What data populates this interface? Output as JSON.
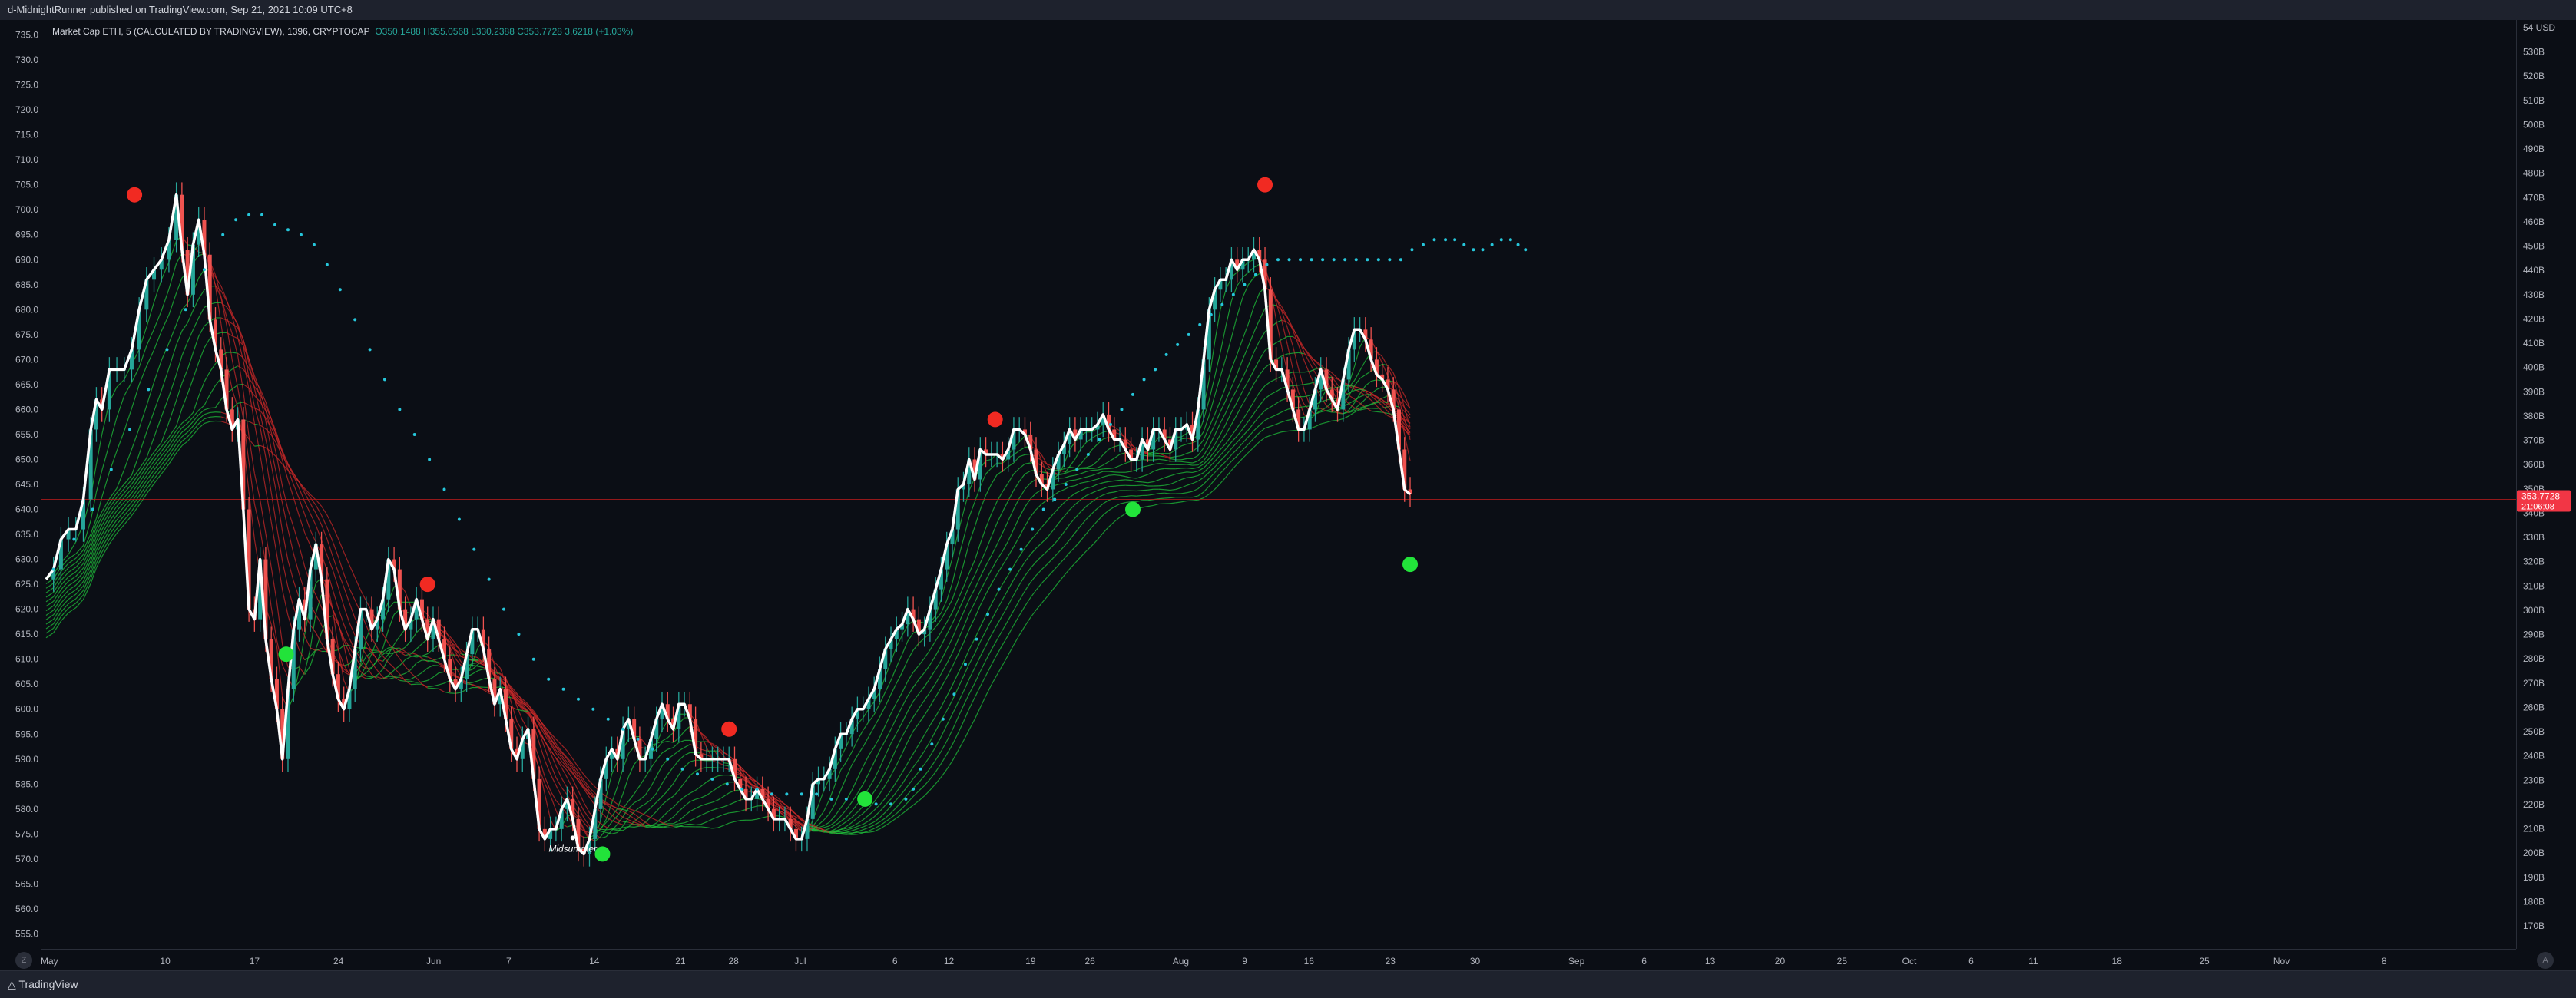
{
  "header": {
    "published": "d-MidnightRunner published on TradingView.com, Sep 21, 2021 10:09 UTC+8"
  },
  "legend": {
    "symbol": "Market Cap ETH, 5 (CALCULATED BY TRADINGVIEW), 1396, CRYPTOCAP",
    "open": "O350.1488",
    "high": "H355.0568",
    "low": "L330.2388",
    "close": "C353.7728",
    "change": "3.6218 (+1.03%)"
  },
  "price_tag": {
    "value": "353.7728",
    "countdown": "21:06:08"
  },
  "annotation": "Midsummer",
  "footer": {
    "brand": "TradingView"
  },
  "corners": {
    "left": "Z",
    "right": "A"
  },
  "colors": {
    "up": "#26a69a",
    "down": "#ef5350",
    "price_line": "#ffffff",
    "ribbon_up": "#1fbf3a",
    "ribbon_down": "#c62828",
    "trend_dots": "#26c6da",
    "buy_dot": "#22e33a",
    "sell_dot": "#f12a22",
    "price_tag": "#f23645"
  },
  "chart_data": {
    "type": "line",
    "title": "Market Cap ETH, 5 (CALCULATED BY TRADINGVIEW), 1396, CRYPTOCAP",
    "x_tick_labels": [
      "May",
      "10",
      "17",
      "24",
      "Jun",
      "7",
      "14",
      "21",
      "28",
      "Jul",
      "6",
      "12",
      "19",
      "26",
      "Aug",
      "9",
      "16",
      "23",
      "30",
      "Sep",
      "6",
      "13",
      "20",
      "25",
      "Oct",
      "6",
      "11",
      "18",
      "25",
      "Nov",
      "8"
    ],
    "x_tick_fractions": [
      0.0032,
      0.05,
      0.0861,
      0.12,
      0.1585,
      0.1888,
      0.2234,
      0.2582,
      0.2797,
      0.3066,
      0.3449,
      0.3667,
      0.3997,
      0.4237,
      0.4604,
      0.4862,
      0.5122,
      0.5451,
      0.5793,
      0.6203,
      0.6476,
      0.6743,
      0.7025,
      0.7276,
      0.7548,
      0.7798,
      0.8049,
      0.8387,
      0.874,
      0.9052,
      0.9467
    ],
    "y_left_ticks": [
      "735.0",
      "730.0",
      "725.0",
      "720.0",
      "715.0",
      "710.0",
      "705.0",
      "700.0",
      "695.0",
      "690.0",
      "685.0",
      "680.0",
      "675.0",
      "670.0",
      "665.0",
      "660.0",
      "655.0",
      "650.0",
      "645.0",
      "640.0",
      "635.0",
      "630.0",
      "625.0",
      "620.0",
      "615.0",
      "610.0",
      "605.0",
      "600.0",
      "595.0",
      "590.0",
      "585.0",
      "580.0",
      "575.0",
      "570.0",
      "565.0",
      "560.0",
      "555.0"
    ],
    "y_left_range": [
      552,
      738
    ],
    "y_right_unit": "USD",
    "y_right_ticks": [
      "54",
      "530B",
      "520B",
      "510B",
      "500B",
      "490B",
      "480B",
      "470B",
      "460B",
      "450B",
      "440B",
      "430B",
      "420B",
      "410B",
      "400B",
      "390B",
      "380B",
      "370B",
      "360B",
      "350B",
      "340B",
      "330B",
      "320B",
      "310B",
      "300B",
      "290B",
      "280B",
      "270B",
      "260B",
      "250B",
      "240B",
      "230B",
      "220B",
      "210B",
      "200B",
      "190B",
      "180B",
      "170B"
    ],
    "current_level": 642,
    "price_series": [
      [
        0,
        626
      ],
      [
        0.004,
        628
      ],
      [
        0.008,
        634
      ],
      [
        0.012,
        636
      ],
      [
        0.016,
        636
      ],
      [
        0.02,
        642
      ],
      [
        0.024,
        656
      ],
      [
        0.027,
        662
      ],
      [
        0.03,
        660
      ],
      [
        0.034,
        668
      ],
      [
        0.038,
        668
      ],
      [
        0.042,
        668
      ],
      [
        0.046,
        672
      ],
      [
        0.05,
        680
      ],
      [
        0.054,
        686
      ],
      [
        0.058,
        688
      ],
      [
        0.062,
        690
      ],
      [
        0.066,
        694
      ],
      [
        0.07,
        703
      ],
      [
        0.073,
        692
      ],
      [
        0.076,
        683
      ],
      [
        0.079,
        693
      ],
      [
        0.082,
        698
      ],
      [
        0.085,
        691
      ],
      [
        0.088,
        678
      ],
      [
        0.091,
        672
      ],
      [
        0.094,
        668
      ],
      [
        0.097,
        660
      ],
      [
        0.1,
        656
      ],
      [
        0.103,
        658
      ],
      [
        0.106,
        640
      ],
      [
        0.109,
        620
      ],
      [
        0.112,
        618
      ],
      [
        0.115,
        630
      ],
      [
        0.118,
        614
      ],
      [
        0.121,
        606
      ],
      [
        0.124,
        600
      ],
      [
        0.127,
        590
      ],
      [
        0.13,
        604
      ],
      [
        0.133,
        616
      ],
      [
        0.136,
        622
      ],
      [
        0.139,
        618
      ],
      [
        0.142,
        628
      ],
      [
        0.145,
        633
      ],
      [
        0.148,
        626
      ],
      [
        0.151,
        614
      ],
      [
        0.154,
        607
      ],
      [
        0.157,
        602
      ],
      [
        0.16,
        600
      ],
      [
        0.163,
        604
      ],
      [
        0.166,
        612
      ],
      [
        0.169,
        620
      ],
      [
        0.172,
        620
      ],
      [
        0.175,
        616
      ],
      [
        0.178,
        618
      ],
      [
        0.181,
        622
      ],
      [
        0.184,
        630
      ],
      [
        0.187,
        628
      ],
      [
        0.19,
        620
      ],
      [
        0.193,
        616
      ],
      [
        0.196,
        618
      ],
      [
        0.199,
        622
      ],
      [
        0.202,
        618
      ],
      [
        0.205,
        614
      ],
      [
        0.208,
        618
      ],
      [
        0.211,
        614
      ],
      [
        0.214,
        610
      ],
      [
        0.217,
        606
      ],
      [
        0.22,
        604
      ],
      [
        0.223,
        606
      ],
      [
        0.226,
        611
      ],
      [
        0.229,
        616
      ],
      [
        0.232,
        616
      ],
      [
        0.235,
        612
      ],
      [
        0.238,
        606
      ],
      [
        0.241,
        601
      ],
      [
        0.244,
        604
      ],
      [
        0.247,
        598
      ],
      [
        0.25,
        592
      ],
      [
        0.253,
        590
      ],
      [
        0.256,
        594
      ],
      [
        0.259,
        596
      ],
      [
        0.262,
        586
      ],
      [
        0.265,
        576
      ],
      [
        0.268,
        574
      ],
      [
        0.271,
        576
      ],
      [
        0.274,
        576
      ],
      [
        0.277,
        580
      ],
      [
        0.28,
        582
      ],
      [
        0.283,
        578
      ],
      [
        0.286,
        572
      ],
      [
        0.289,
        571
      ],
      [
        0.292,
        574
      ],
      [
        0.295,
        580
      ],
      [
        0.298,
        586
      ],
      [
        0.301,
        590
      ],
      [
        0.304,
        592
      ],
      [
        0.307,
        590
      ],
      [
        0.31,
        596
      ],
      [
        0.313,
        598
      ],
      [
        0.316,
        594
      ],
      [
        0.319,
        590
      ],
      [
        0.322,
        590
      ],
      [
        0.325,
        594
      ],
      [
        0.328,
        598
      ],
      [
        0.331,
        601
      ],
      [
        0.334,
        598
      ],
      [
        0.337,
        596
      ],
      [
        0.34,
        601
      ],
      [
        0.343,
        601
      ],
      [
        0.346,
        598
      ],
      [
        0.349,
        591
      ],
      [
        0.352,
        590
      ],
      [
        0.355,
        590
      ],
      [
        0.358,
        590
      ],
      [
        0.361,
        590
      ],
      [
        0.364,
        590
      ],
      [
        0.367,
        590
      ],
      [
        0.37,
        586
      ],
      [
        0.373,
        584
      ],
      [
        0.376,
        582
      ],
      [
        0.379,
        582
      ],
      [
        0.382,
        584
      ],
      [
        0.385,
        582
      ],
      [
        0.388,
        580
      ],
      [
        0.391,
        578
      ],
      [
        0.394,
        578
      ],
      [
        0.397,
        578
      ],
      [
        0.4,
        576
      ],
      [
        0.403,
        574
      ],
      [
        0.406,
        574
      ],
      [
        0.409,
        578
      ],
      [
        0.412,
        585
      ],
      [
        0.415,
        586
      ],
      [
        0.418,
        586
      ],
      [
        0.421,
        588
      ],
      [
        0.424,
        592
      ],
      [
        0.427,
        595
      ],
      [
        0.43,
        595
      ],
      [
        0.433,
        598
      ],
      [
        0.436,
        600
      ],
      [
        0.439,
        600
      ],
      [
        0.442,
        602
      ],
      [
        0.445,
        604
      ],
      [
        0.448,
        608
      ],
      [
        0.451,
        612
      ],
      [
        0.454,
        614
      ],
      [
        0.457,
        616
      ],
      [
        0.46,
        617
      ],
      [
        0.463,
        620
      ],
      [
        0.466,
        618
      ],
      [
        0.469,
        615
      ],
      [
        0.472,
        616
      ],
      [
        0.475,
        620
      ],
      [
        0.478,
        624
      ],
      [
        0.481,
        628
      ],
      [
        0.484,
        633
      ],
      [
        0.487,
        636
      ],
      [
        0.49,
        644
      ],
      [
        0.493,
        645
      ],
      [
        0.496,
        650
      ],
      [
        0.499,
        646
      ],
      [
        0.502,
        652
      ],
      [
        0.505,
        651
      ],
      [
        0.508,
        651
      ],
      [
        0.511,
        651
      ],
      [
        0.514,
        650
      ],
      [
        0.517,
        652
      ],
      [
        0.52,
        656
      ],
      [
        0.523,
        656
      ],
      [
        0.526,
        655
      ],
      [
        0.529,
        652
      ],
      [
        0.532,
        647
      ],
      [
        0.535,
        645
      ],
      [
        0.538,
        644
      ],
      [
        0.541,
        648
      ],
      [
        0.544,
        651
      ],
      [
        0.547,
        653
      ],
      [
        0.55,
        656
      ],
      [
        0.553,
        654
      ],
      [
        0.556,
        656
      ],
      [
        0.559,
        656
      ],
      [
        0.562,
        656
      ],
      [
        0.565,
        657
      ],
      [
        0.568,
        659
      ],
      [
        0.571,
        656
      ],
      [
        0.574,
        654
      ],
      [
        0.577,
        654
      ],
      [
        0.58,
        652
      ],
      [
        0.583,
        650
      ],
      [
        0.586,
        650
      ],
      [
        0.589,
        654
      ],
      [
        0.592,
        652
      ],
      [
        0.595,
        656
      ],
      [
        0.598,
        656
      ],
      [
        0.601,
        654
      ],
      [
        0.604,
        652
      ],
      [
        0.607,
        656
      ],
      [
        0.61,
        656
      ],
      [
        0.613,
        657
      ],
      [
        0.616,
        654
      ],
      [
        0.619,
        660
      ],
      [
        0.622,
        670
      ],
      [
        0.625,
        680
      ],
      [
        0.628,
        684
      ],
      [
        0.631,
        686
      ],
      [
        0.634,
        686
      ],
      [
        0.637,
        690
      ],
      [
        0.64,
        688
      ],
      [
        0.643,
        690
      ],
      [
        0.646,
        690
      ],
      [
        0.649,
        692
      ],
      [
        0.652,
        690
      ],
      [
        0.655,
        684
      ],
      [
        0.658,
        670
      ],
      [
        0.661,
        668
      ],
      [
        0.664,
        668
      ],
      [
        0.667,
        664
      ],
      [
        0.67,
        660
      ],
      [
        0.673,
        656
      ],
      [
        0.676,
        656
      ],
      [
        0.679,
        660
      ],
      [
        0.682,
        664
      ],
      [
        0.685,
        668
      ],
      [
        0.688,
        664
      ],
      [
        0.691,
        662
      ],
      [
        0.694,
        660
      ],
      [
        0.697,
        666
      ],
      [
        0.7,
        672
      ],
      [
        0.703,
        676
      ],
      [
        0.706,
        676
      ],
      [
        0.709,
        674
      ],
      [
        0.712,
        670
      ],
      [
        0.715,
        667
      ],
      [
        0.718,
        666
      ],
      [
        0.721,
        664
      ],
      [
        0.724,
        660
      ],
      [
        0.727,
        652
      ],
      [
        0.73,
        644
      ],
      [
        0.733,
        643
      ]
    ],
    "trend_dots": [
      [
        0.004,
        628
      ],
      [
        0.015,
        634
      ],
      [
        0.025,
        640
      ],
      [
        0.035,
        648
      ],
      [
        0.045,
        656
      ],
      [
        0.055,
        664
      ],
      [
        0.065,
        672
      ],
      [
        0.075,
        680
      ],
      [
        0.085,
        688
      ],
      [
        0.095,
        695
      ],
      [
        0.102,
        698
      ],
      [
        0.109,
        699
      ],
      [
        0.116,
        699
      ],
      [
        0.123,
        697
      ],
      [
        0.13,
        696
      ],
      [
        0.137,
        695
      ],
      [
        0.144,
        693
      ],
      [
        0.151,
        689
      ],
      [
        0.158,
        684
      ],
      [
        0.166,
        678
      ],
      [
        0.174,
        672
      ],
      [
        0.182,
        666
      ],
      [
        0.19,
        660
      ],
      [
        0.198,
        655
      ],
      [
        0.206,
        650
      ],
      [
        0.214,
        644
      ],
      [
        0.222,
        638
      ],
      [
        0.23,
        632
      ],
      [
        0.238,
        626
      ],
      [
        0.246,
        620
      ],
      [
        0.254,
        615
      ],
      [
        0.262,
        610
      ],
      [
        0.27,
        606
      ],
      [
        0.278,
        604
      ],
      [
        0.286,
        602
      ],
      [
        0.294,
        600
      ],
      [
        0.302,
        598
      ],
      [
        0.31,
        596
      ],
      [
        0.318,
        594
      ],
      [
        0.326,
        592
      ],
      [
        0.334,
        590
      ],
      [
        0.342,
        588
      ],
      [
        0.35,
        587
      ],
      [
        0.358,
        586
      ],
      [
        0.366,
        585
      ],
      [
        0.374,
        584
      ],
      [
        0.382,
        584
      ],
      [
        0.39,
        583
      ],
      [
        0.398,
        583
      ],
      [
        0.406,
        583
      ],
      [
        0.414,
        583
      ],
      [
        0.422,
        582
      ],
      [
        0.43,
        582
      ],
      [
        0.438,
        582
      ],
      [
        0.446,
        581
      ],
      [
        0.454,
        581
      ],
      [
        0.462,
        582
      ],
      [
        0.466,
        584
      ],
      [
        0.47,
        588
      ],
      [
        0.476,
        593
      ],
      [
        0.482,
        598
      ],
      [
        0.488,
        603
      ],
      [
        0.494,
        609
      ],
      [
        0.5,
        614
      ],
      [
        0.506,
        619
      ],
      [
        0.512,
        624
      ],
      [
        0.518,
        628
      ],
      [
        0.524,
        632
      ],
      [
        0.53,
        636
      ],
      [
        0.536,
        640
      ],
      [
        0.542,
        642
      ],
      [
        0.548,
        645
      ],
      [
        0.554,
        648
      ],
      [
        0.56,
        651
      ],
      [
        0.566,
        654
      ],
      [
        0.572,
        657
      ],
      [
        0.578,
        660
      ],
      [
        0.584,
        663
      ],
      [
        0.59,
        666
      ],
      [
        0.596,
        668
      ],
      [
        0.602,
        671
      ],
      [
        0.608,
        673
      ],
      [
        0.614,
        675
      ],
      [
        0.62,
        677
      ],
      [
        0.626,
        679
      ],
      [
        0.632,
        681
      ],
      [
        0.638,
        683
      ],
      [
        0.644,
        685
      ],
      [
        0.65,
        687
      ],
      [
        0.656,
        689
      ],
      [
        0.662,
        690
      ],
      [
        0.668,
        690
      ],
      [
        0.674,
        690
      ],
      [
        0.68,
        690
      ],
      [
        0.686,
        690
      ],
      [
        0.692,
        690
      ],
      [
        0.698,
        690
      ],
      [
        0.704,
        690
      ],
      [
        0.71,
        690
      ],
      [
        0.716,
        690
      ],
      [
        0.722,
        690
      ],
      [
        0.728,
        690
      ],
      [
        0.734,
        692
      ],
      [
        0.74,
        693
      ],
      [
        0.746,
        694
      ],
      [
        0.752,
        694
      ],
      [
        0.757,
        694
      ],
      [
        0.762,
        693
      ],
      [
        0.767,
        692
      ],
      [
        0.772,
        692
      ],
      [
        0.777,
        693
      ],
      [
        0.782,
        694
      ],
      [
        0.787,
        694
      ],
      [
        0.791,
        693
      ],
      [
        0.795,
        692
      ]
    ],
    "sell_signals": [
      [
        0.0475,
        703
      ],
      [
        0.205,
        625
      ],
      [
        0.51,
        658
      ],
      [
        0.367,
        596
      ],
      [
        0.655,
        705
      ]
    ],
    "buy_signals": [
      [
        0.129,
        611
      ],
      [
        0.299,
        571
      ],
      [
        0.44,
        582
      ],
      [
        0.584,
        640
      ],
      [
        0.733,
        629
      ]
    ],
    "annotation_point": [
      0.283,
      573
    ]
  }
}
